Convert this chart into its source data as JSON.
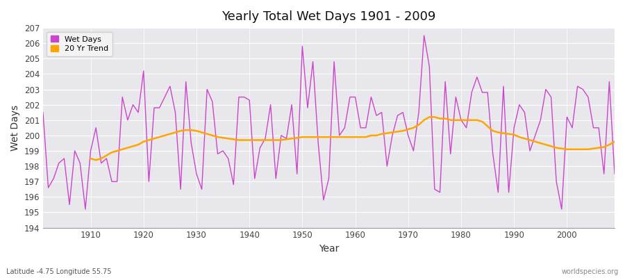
{
  "title": "Yearly Total Wet Days 1901 - 2009",
  "xlabel": "Year",
  "ylabel": "Wet Days",
  "subtitle": "Latitude -4.75 Longitude 55.75",
  "watermark": "worldspecies.org",
  "wet_days_color": "#cc44cc",
  "trend_color": "#FFA500",
  "bg_color": "#ffffff",
  "plot_bg_color": "#e8e8ec",
  "grid_color": "#ffffff",
  "ylim": [
    194,
    207
  ],
  "xlim": [
    1901,
    2009
  ],
  "yticks": [
    194,
    195,
    196,
    197,
    198,
    199,
    200,
    201,
    202,
    203,
    204,
    205,
    206,
    207
  ],
  "xticks": [
    1910,
    1920,
    1930,
    1940,
    1950,
    1960,
    1970,
    1980,
    1990,
    2000
  ],
  "years": [
    1901,
    1902,
    1903,
    1904,
    1905,
    1906,
    1907,
    1908,
    1909,
    1910,
    1911,
    1912,
    1913,
    1914,
    1915,
    1916,
    1917,
    1918,
    1919,
    1920,
    1921,
    1922,
    1923,
    1924,
    1925,
    1926,
    1927,
    1928,
    1929,
    1930,
    1931,
    1932,
    1933,
    1934,
    1935,
    1936,
    1937,
    1938,
    1939,
    1940,
    1941,
    1942,
    1943,
    1944,
    1945,
    1946,
    1947,
    1948,
    1949,
    1950,
    1951,
    1952,
    1953,
    1954,
    1955,
    1956,
    1957,
    1958,
    1959,
    1960,
    1961,
    1962,
    1963,
    1964,
    1965,
    1966,
    1967,
    1968,
    1969,
    1970,
    1971,
    1972,
    1973,
    1974,
    1975,
    1976,
    1977,
    1978,
    1979,
    1980,
    1981,
    1982,
    1983,
    1984,
    1985,
    1986,
    1987,
    1988,
    1989,
    1990,
    1991,
    1992,
    1993,
    1994,
    1995,
    1996,
    1997,
    1998,
    1999,
    2000,
    2001,
    2002,
    2003,
    2004,
    2005,
    2006,
    2007,
    2008,
    2009
  ],
  "wet_days": [
    201.5,
    196.6,
    197.2,
    198.2,
    198.5,
    195.5,
    199.0,
    198.2,
    195.2,
    199.0,
    200.5,
    198.2,
    198.5,
    197.0,
    197.0,
    202.5,
    201.0,
    202.0,
    201.5,
    204.2,
    197.0,
    201.8,
    201.8,
    202.5,
    203.2,
    201.5,
    196.5,
    203.5,
    199.5,
    197.5,
    196.5,
    203.0,
    202.2,
    198.8,
    199.0,
    198.5,
    196.8,
    202.5,
    202.5,
    202.3,
    197.2,
    199.2,
    199.8,
    202.0,
    197.2,
    200.0,
    199.8,
    202.0,
    197.5,
    205.8,
    201.8,
    204.8,
    199.5,
    195.8,
    197.2,
    204.8,
    200.0,
    200.5,
    202.5,
    202.5,
    200.5,
    200.5,
    202.5,
    201.3,
    201.5,
    198.0,
    200.0,
    201.3,
    201.5,
    200.0,
    199.0,
    201.5,
    206.5,
    204.5,
    196.5,
    196.3,
    203.5,
    198.8,
    202.5,
    201.0,
    200.5,
    202.8,
    203.8,
    202.8,
    202.8,
    198.8,
    196.3,
    203.2,
    196.3,
    200.5,
    202.0,
    201.5,
    199.0,
    200.0,
    201.0,
    203.0,
    202.5,
    197.0,
    195.2,
    201.2,
    200.5,
    203.2,
    203.0,
    202.5,
    200.5,
    200.5,
    197.5,
    203.5,
    197.5
  ],
  "trend": [
    null,
    null,
    null,
    null,
    null,
    null,
    null,
    null,
    null,
    198.5,
    198.4,
    198.5,
    198.7,
    198.9,
    199.0,
    199.1,
    199.2,
    199.3,
    199.4,
    199.6,
    199.7,
    199.8,
    199.9,
    200.0,
    200.1,
    200.2,
    200.3,
    200.35,
    200.35,
    200.3,
    200.2,
    200.1,
    200.0,
    199.9,
    199.85,
    199.8,
    199.75,
    199.7,
    199.7,
    199.7,
    199.7,
    199.7,
    199.7,
    199.7,
    199.7,
    199.7,
    199.75,
    199.8,
    199.85,
    199.9,
    199.9,
    199.9,
    199.9,
    199.9,
    199.9,
    199.9,
    199.9,
    199.9,
    199.9,
    199.9,
    199.9,
    199.9,
    200.0,
    200.0,
    200.1,
    200.15,
    200.2,
    200.25,
    200.3,
    200.4,
    200.5,
    200.7,
    201.0,
    201.2,
    201.2,
    201.1,
    201.1,
    201.0,
    201.0,
    201.0,
    201.0,
    201.0,
    201.0,
    200.9,
    200.6,
    200.3,
    200.2,
    200.15,
    200.1,
    200.05,
    199.9,
    199.8,
    199.7,
    199.6,
    199.5,
    199.4,
    199.3,
    199.2,
    199.15,
    199.1,
    199.1,
    199.1,
    199.1,
    199.1,
    199.15,
    199.2,
    199.25,
    199.4,
    199.6
  ]
}
